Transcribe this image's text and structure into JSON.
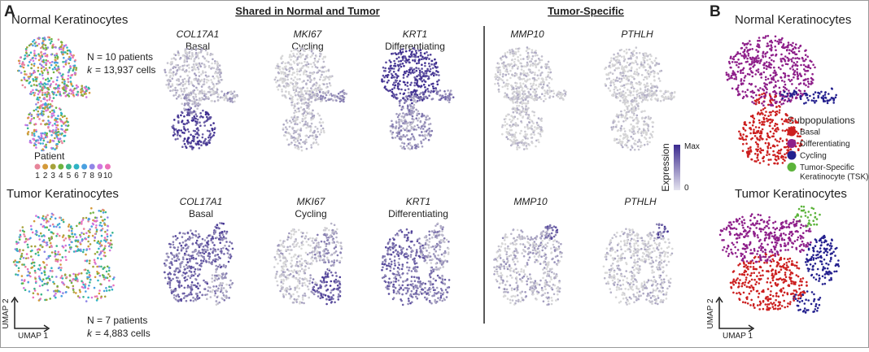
{
  "panel_a": {
    "label": "A",
    "headers": {
      "shared": "Shared in Normal and Tumor",
      "tumor_specific": "Tumor-Specific"
    },
    "normal": {
      "title": "Normal Keratinocytes",
      "n_text": "N = 10 patients",
      "k_symbol": "k",
      "k_text": "= 13,937 cells"
    },
    "tumor": {
      "title": "Tumor Keratinocytes",
      "n_text": "N = 7 patients",
      "k_symbol": "k",
      "k_text": "= 4,883 cells"
    },
    "patient_legend": {
      "title": "Patient",
      "items": [
        {
          "label": "1",
          "color": "#e7859a"
        },
        {
          "label": "2",
          "color": "#d49a3a"
        },
        {
          "label": "3",
          "color": "#a6a23a"
        },
        {
          "label": "4",
          "color": "#6fb33f"
        },
        {
          "label": "5",
          "color": "#3bb58a"
        },
        {
          "label": "6",
          "color": "#2fb3c4"
        },
        {
          "label": "7",
          "color": "#4aa0e0"
        },
        {
          "label": "8",
          "color": "#8f86e6"
        },
        {
          "label": "9",
          "color": "#d176de"
        },
        {
          "label": "10",
          "color": "#ec6fb8"
        }
      ]
    },
    "genes": [
      {
        "gene": "COL17A1",
        "role": "Basal"
      },
      {
        "gene": "MKI67",
        "role": "Cycling"
      },
      {
        "gene": "KRT1",
        "role": "Differentiating"
      },
      {
        "gene": "MMP10"
      },
      {
        "gene": "PTHLH"
      }
    ],
    "expression_legend": {
      "title": "Expression",
      "max": "Max",
      "min": "0"
    },
    "axes": {
      "y": "UMAP 2",
      "x": "UMAP 1"
    }
  },
  "panel_b": {
    "label": "B",
    "normal_title": "Normal Keratinocytes",
    "tumor_title": "Tumor Keratinocytes",
    "legend": {
      "title": "Subpopulations",
      "items": [
        {
          "label": "Basal",
          "color": "#cc1f1f"
        },
        {
          "label": "Differentiating",
          "color": "#8e1f8a"
        },
        {
          "label": "Cycling",
          "color": "#24208e"
        },
        {
          "label": "Tumor-Specific",
          "label2": "Keratinocyte (TSK)",
          "color": "#5bb33a"
        }
      ]
    },
    "axes": {
      "y": "UMAP 2",
      "x": "UMAP 1"
    }
  }
}
